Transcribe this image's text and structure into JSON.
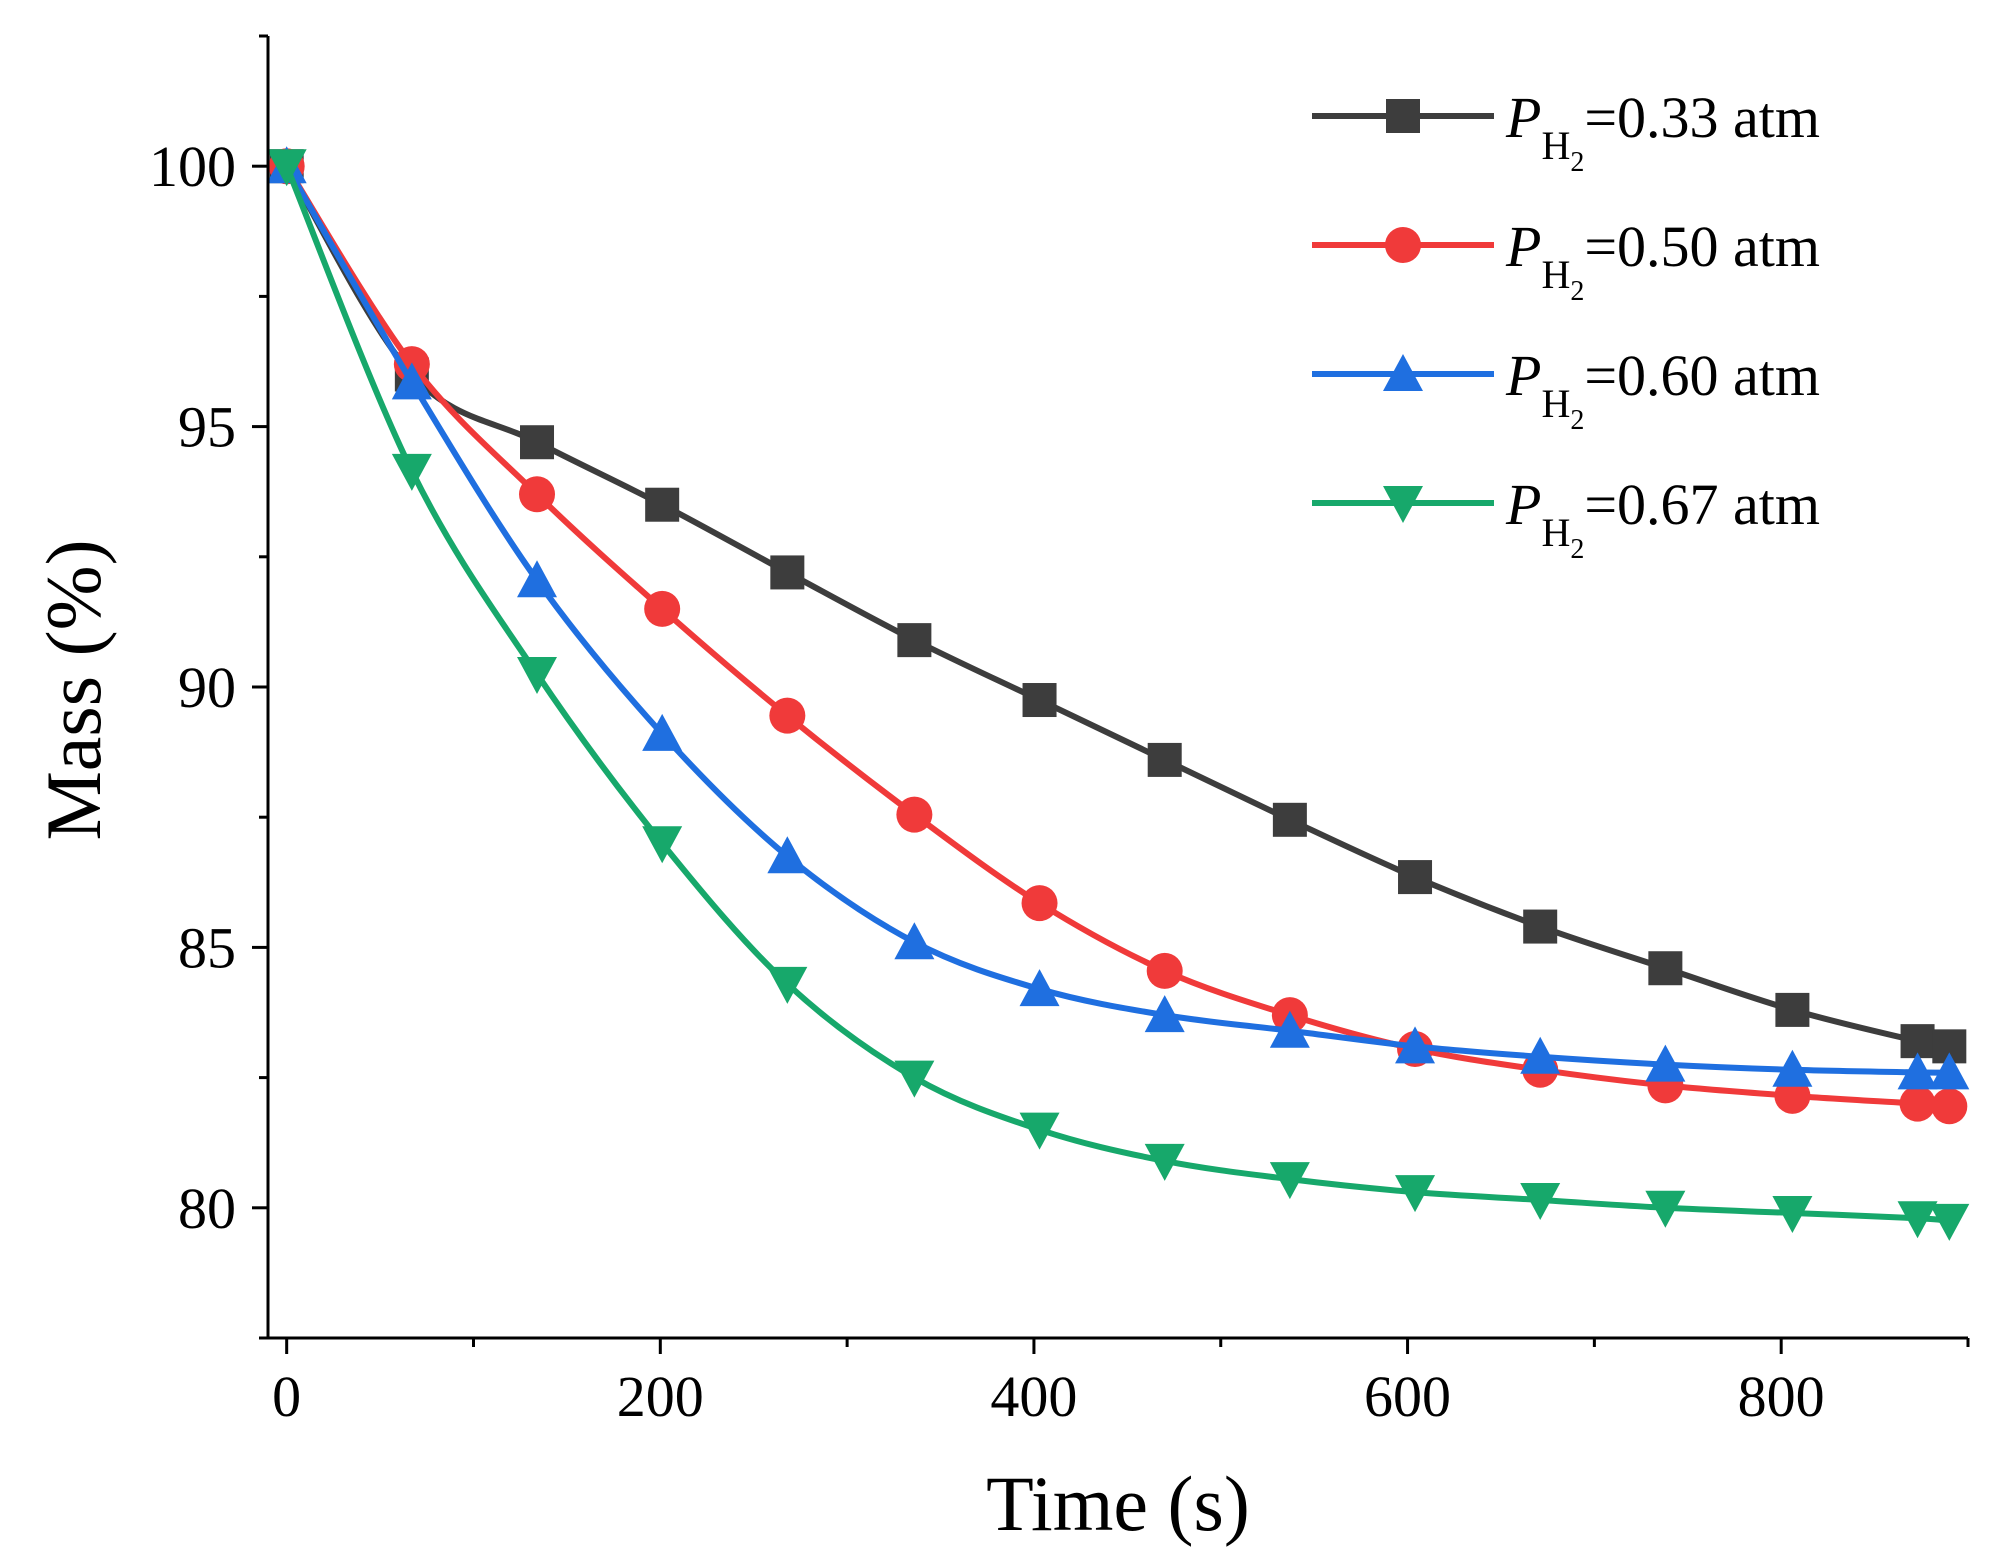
{
  "chart_data": {
    "type": "line",
    "title": "",
    "xlabel": "Time (s)",
    "ylabel": "Mass (%)",
    "xlim": [
      -10,
      900
    ],
    "ylim": [
      77.5,
      102.5
    ],
    "xticks": [
      0,
      200,
      400,
      600,
      800
    ],
    "yticks": [
      80,
      85,
      90,
      95,
      100
    ],
    "x_minor_step": 100,
    "y_minor_step": 2.5,
    "grid": false,
    "legend_position": "top-right",
    "series": [
      {
        "name": "P_H2=0.33 atm",
        "legend": {
          "p": "P",
          "sub": "H",
          "subsub": "2",
          "rest": "=0.33 atm"
        },
        "color": "#3d3d3d",
        "marker": "square",
        "x": [
          0,
          67,
          134,
          201,
          268,
          336,
          403,
          470,
          537,
          604,
          671,
          738,
          806,
          873,
          890
        ],
        "y": [
          100,
          96.0,
          94.7,
          93.5,
          92.2,
          90.9,
          89.75,
          88.6,
          87.45,
          86.35,
          85.4,
          84.6,
          83.8,
          83.2,
          83.1
        ]
      },
      {
        "name": "P_H2=0.50 atm",
        "legend": {
          "p": "P",
          "sub": "H",
          "subsub": "2",
          "rest": "=0.50 atm"
        },
        "color": "#f03a3a",
        "marker": "circle",
        "x": [
          0,
          67,
          134,
          201,
          268,
          336,
          403,
          470,
          537,
          604,
          671,
          738,
          806,
          873,
          890
        ],
        "y": [
          100,
          96.2,
          93.7,
          91.5,
          89.45,
          87.55,
          85.85,
          84.55,
          83.7,
          83.05,
          82.65,
          82.35,
          82.15,
          82.0,
          81.95
        ]
      },
      {
        "name": "P_H2=0.60 atm",
        "legend": {
          "p": "P",
          "sub": "H",
          "subsub": "2",
          "rest": "=0.60 atm"
        },
        "color": "#1f6fe0",
        "marker": "triangle-up",
        "x": [
          0,
          67,
          134,
          201,
          268,
          336,
          403,
          470,
          537,
          604,
          671,
          738,
          806,
          873,
          890
        ],
        "y": [
          100,
          95.85,
          92.05,
          89.1,
          86.75,
          85.1,
          84.2,
          83.7,
          83.4,
          83.1,
          82.9,
          82.75,
          82.65,
          82.6,
          82.6
        ]
      },
      {
        "name": "P_H2=0.67 atm",
        "legend": {
          "p": "P",
          "sub": "H",
          "subsub": "2",
          "rest": "=0.67 atm"
        },
        "color": "#17a86b",
        "marker": "triangle-down",
        "x": [
          0,
          67,
          134,
          201,
          268,
          336,
          403,
          470,
          537,
          604,
          671,
          738,
          806,
          873,
          890
        ],
        "y": [
          100,
          94.15,
          90.25,
          87.0,
          84.3,
          82.5,
          81.5,
          80.9,
          80.55,
          80.3,
          80.15,
          80.0,
          79.9,
          79.8,
          79.75
        ]
      }
    ]
  }
}
